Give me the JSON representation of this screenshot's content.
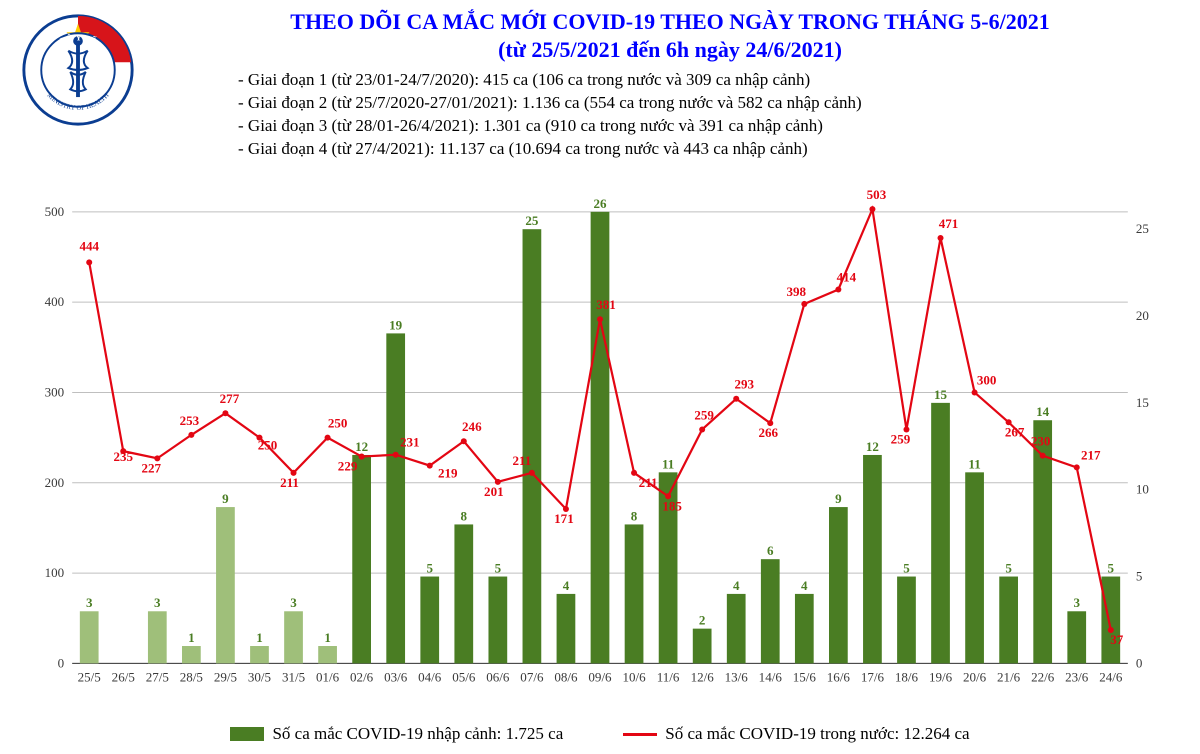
{
  "title": {
    "line1": "THEO DÕI CA MẮC MỚI COVID-19 THEO NGÀY TRONG THÁNG 5-6/2021",
    "line2": "(từ 25/5/2021 đến 6h ngày 24/6/2021)",
    "color": "#0000ff",
    "fontsize": 22
  },
  "notes": {
    "lines": [
      "- Giai đoạn 1 (từ 23/01-24/7/2020): 415 ca (106 ca trong nước và 309 ca nhập cảnh)",
      "- Giai đoạn 2 (từ 25/7/2020-27/01/2021): 1.136 ca (554 ca trong nước và 582 ca nhập cảnh)",
      "- Giai đoạn 3 (từ 28/01-26/4/2021): 1.301 ca (910 ca trong nước và 391 ca nhập cảnh)",
      "- Giai đoạn 4 (từ 27/4/2021): 11.137 ca (10.694 ca trong nước và 443 ca nhập cảnh)"
    ],
    "fontsize": 17,
    "color": "#000000"
  },
  "logo": {
    "name": "ministry-of-health-logo",
    "outer_color": "#0b3d91",
    "star_color": "#ffcc00",
    "top_band_color": "#d7141a",
    "staff_color": "#0b3d91",
    "text_top": "BỘ Y TẾ",
    "text_bottom": "MINISTRY OF HEALTH"
  },
  "chart": {
    "type": "bar+line",
    "background_color": "#ffffff",
    "grid_color": "#bfbfbf",
    "axis_label_color": "#3a3a3a",
    "axis_label_fontsize": 13,
    "data_label_fontsize": 13,
    "bar_width": 0.55,
    "left_axis": {
      "min": 0,
      "max": 500,
      "step": 100
    },
    "right_axis": {
      "min": 0,
      "max": 26,
      "step": 5
    },
    "categories": [
      "25/5",
      "26/5",
      "27/5",
      "28/5",
      "29/5",
      "30/5",
      "31/5",
      "01/6",
      "02/6",
      "03/6",
      "04/6",
      "05/6",
      "06/6",
      "07/6",
      "08/6",
      "09/6",
      "10/6",
      "11/6",
      "12/6",
      "13/6",
      "14/6",
      "15/6",
      "16/6",
      "17/6",
      "18/6",
      "19/6",
      "20/6",
      "21/6",
      "22/6",
      "23/6",
      "24/6"
    ],
    "bars": {
      "series_name": "Số ca mắc COVID-19 nhập cảnh: 1.725 ca",
      "axis": "right",
      "values": [
        3,
        0,
        3,
        1,
        9,
        1,
        3,
        1,
        12,
        19,
        5,
        8,
        5,
        25,
        4,
        26,
        8,
        11,
        2,
        4,
        6,
        4,
        9,
        12,
        5,
        15,
        11,
        5,
        14,
        3,
        5
      ],
      "colors": [
        "#9fbf7a",
        "#9fbf7a",
        "#9fbf7a",
        "#9fbf7a",
        "#9fbf7a",
        "#9fbf7a",
        "#9fbf7a",
        "#9fbf7a",
        "#4a7d23",
        "#4a7d23",
        "#4a7d23",
        "#4a7d23",
        "#4a7d23",
        "#4a7d23",
        "#4a7d23",
        "#4a7d23",
        "#4a7d23",
        "#4a7d23",
        "#4a7d23",
        "#4a7d23",
        "#4a7d23",
        "#4a7d23",
        "#4a7d23",
        "#4a7d23",
        "#4a7d23",
        "#4a7d23",
        "#4a7d23",
        "#4a7d23",
        "#4a7d23",
        "#4a7d23",
        "#4a7d23"
      ],
      "label_color": "#4a7d23",
      "legend_color": "#4a7d23",
      "label_fontweight": "bold"
    },
    "line": {
      "series_name": "Số ca mắc COVID-19 trong nước: 12.264 ca",
      "axis": "left",
      "values": [
        444,
        235,
        227,
        253,
        277,
        250,
        211,
        250,
        229,
        231,
        219,
        246,
        201,
        211,
        171,
        381,
        211,
        185,
        259,
        293,
        266,
        398,
        414,
        503,
        259,
        471,
        300,
        267,
        230,
        217,
        37
      ],
      "color": "#e30613",
      "line_width": 2.2,
      "marker_size": 3,
      "label_color": "#e30613",
      "label_fontweight": "bold"
    },
    "label_offsets": {
      "line": [
        [
          0,
          -12
        ],
        [
          0,
          10
        ],
        [
          -6,
          14
        ],
        [
          -2,
          -10
        ],
        [
          4,
          -10
        ],
        [
          8,
          12
        ],
        [
          -4,
          14
        ],
        [
          10,
          -10
        ],
        [
          -14,
          14
        ],
        [
          14,
          -8
        ],
        [
          18,
          12
        ],
        [
          8,
          -10
        ],
        [
          -4,
          14
        ],
        [
          -10,
          -8
        ],
        [
          -2,
          14
        ],
        [
          6,
          -10
        ],
        [
          14,
          14
        ],
        [
          4,
          14
        ],
        [
          2,
          -10
        ],
        [
          8,
          -10
        ],
        [
          -2,
          14
        ],
        [
          -8,
          -8
        ],
        [
          8,
          -8
        ],
        [
          4,
          -10
        ],
        [
          -6,
          14
        ],
        [
          8,
          -10
        ],
        [
          12,
          -8
        ],
        [
          6,
          14
        ],
        [
          -2,
          -10
        ],
        [
          14,
          -8
        ],
        [
          6,
          14
        ]
      ]
    }
  },
  "legend": {
    "bar_label": "Số ca mắc COVID-19 nhập cảnh: 1.725 ca",
    "line_label": "Số ca mắc COVID-19 trong nước: 12.264 ca"
  }
}
